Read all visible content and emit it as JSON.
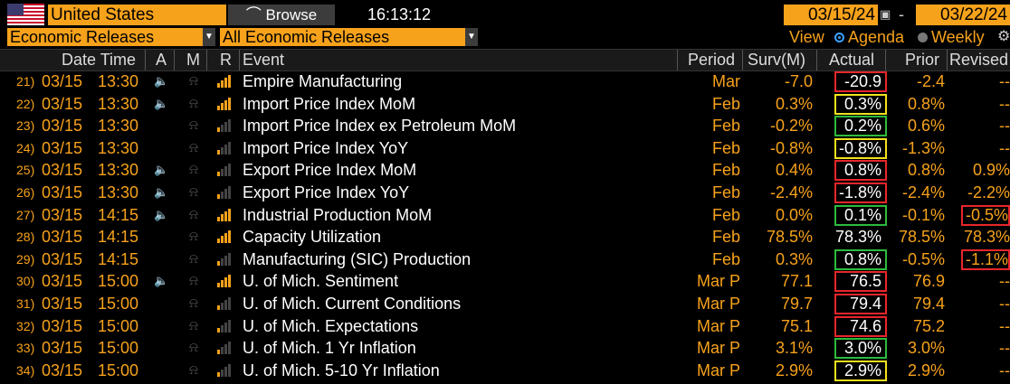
{
  "top": {
    "country": "United States",
    "browse_label": "Browse",
    "time": "16:13:12",
    "start_date": "03/15/24",
    "end_date": "03/22/24",
    "dash": "-"
  },
  "filters": {
    "category": "Economic Releases",
    "subcategory": "All Economic Releases",
    "view_label": "View",
    "agenda_label": "Agenda",
    "weekly_label": "Weekly"
  },
  "columns": {
    "datetime": "Date Time",
    "a": "A",
    "m": "M",
    "r": "R",
    "event": "Event",
    "period": "Period",
    "surv": "Surv(M)",
    "actual": "Actual",
    "prior": "Prior",
    "revised": "Revised"
  },
  "colors": {
    "orange": "#f7a21b",
    "red": "#e8262b",
    "yellow": "#f2e21c",
    "green": "#2dbb3d"
  },
  "rows": [
    {
      "num": "21)",
      "date": "03/15",
      "time": "13:30",
      "speaker": true,
      "bars": 4,
      "event": "Empire Manufacturing",
      "period": "Mar",
      "surv": "-7.0",
      "actual": "-20.9",
      "actual_box": "red",
      "prior": "-2.4",
      "revised": "--",
      "revised_box": ""
    },
    {
      "num": "22)",
      "date": "03/15",
      "time": "13:30",
      "speaker": true,
      "bars": 4,
      "event": "Import Price Index MoM",
      "period": "Feb",
      "surv": "0.3%",
      "actual": "0.3%",
      "actual_box": "yellow",
      "prior": "0.8%",
      "revised": "--",
      "revised_box": ""
    },
    {
      "num": "23)",
      "date": "03/15",
      "time": "13:30",
      "speaker": false,
      "bars": 1,
      "event": "Import Price Index ex Petroleum MoM",
      "period": "Feb",
      "surv": "-0.2%",
      "actual": "0.2%",
      "actual_box": "green",
      "prior": "0.6%",
      "revised": "--",
      "revised_box": ""
    },
    {
      "num": "24)",
      "date": "03/15",
      "time": "13:30",
      "speaker": false,
      "bars": 1,
      "event": "Import Price Index YoY",
      "period": "Feb",
      "surv": "-0.8%",
      "actual": "-0.8%",
      "actual_box": "yellow",
      "prior": "-1.3%",
      "revised": "--",
      "revised_box": ""
    },
    {
      "num": "25)",
      "date": "03/15",
      "time": "13:30",
      "speaker": true,
      "bars": 1,
      "event": "Export Price Index MoM",
      "period": "Feb",
      "surv": "0.4%",
      "actual": "0.8%",
      "actual_box": "red",
      "prior": "0.8%",
      "revised": "0.9%",
      "revised_box": ""
    },
    {
      "num": "26)",
      "date": "03/15",
      "time": "13:30",
      "speaker": true,
      "bars": 1,
      "event": "Export Price Index YoY",
      "period": "Feb",
      "surv": "-2.4%",
      "actual": "-1.8%",
      "actual_box": "red",
      "prior": "-2.4%",
      "revised": "-2.2%",
      "revised_box": ""
    },
    {
      "num": "27)",
      "date": "03/15",
      "time": "14:15",
      "speaker": true,
      "bars": 4,
      "event": "Industrial Production MoM",
      "period": "Feb",
      "surv": "0.0%",
      "actual": "0.1%",
      "actual_box": "green",
      "prior": "-0.1%",
      "revised": "-0.5%",
      "revised_box": "red"
    },
    {
      "num": "28)",
      "date": "03/15",
      "time": "14:15",
      "speaker": false,
      "bars": 4,
      "event": "Capacity Utilization",
      "period": "Feb",
      "surv": "78.5%",
      "actual": "78.3%",
      "actual_box": "",
      "prior": "78.5%",
      "revised": "78.3%",
      "revised_box": ""
    },
    {
      "num": "29)",
      "date": "03/15",
      "time": "14:15",
      "speaker": false,
      "bars": 1,
      "event": "Manufacturing (SIC) Production",
      "period": "Feb",
      "surv": "0.3%",
      "actual": "0.8%",
      "actual_box": "green",
      "prior": "-0.5%",
      "revised": "-1.1%",
      "revised_box": "red"
    },
    {
      "num": "30)",
      "date": "03/15",
      "time": "15:00",
      "speaker": true,
      "bars": 4,
      "event": "U. of Mich. Sentiment",
      "period": "Mar P",
      "surv": "77.1",
      "actual": "76.5",
      "actual_box": "red",
      "prior": "76.9",
      "revised": "--",
      "revised_box": ""
    },
    {
      "num": "31)",
      "date": "03/15",
      "time": "15:00",
      "speaker": false,
      "bars": 1,
      "event": "U. of Mich. Current Conditions",
      "period": "Mar P",
      "surv": "79.7",
      "actual": "79.4",
      "actual_box": "red",
      "prior": "79.4",
      "revised": "--",
      "revised_box": ""
    },
    {
      "num": "32)",
      "date": "03/15",
      "time": "15:00",
      "speaker": false,
      "bars": 1,
      "event": "U. of Mich. Expectations",
      "period": "Mar P",
      "surv": "75.1",
      "actual": "74.6",
      "actual_box": "red",
      "prior": "75.2",
      "revised": "--",
      "revised_box": ""
    },
    {
      "num": "33)",
      "date": "03/15",
      "time": "15:00",
      "speaker": false,
      "bars": 1,
      "event": "U. of Mich. 1 Yr Inflation",
      "period": "Mar P",
      "surv": "3.1%",
      "actual": "3.0%",
      "actual_box": "green",
      "prior": "3.0%",
      "revised": "--",
      "revised_box": ""
    },
    {
      "num": "34)",
      "date": "03/15",
      "time": "15:00",
      "speaker": false,
      "bars": 1,
      "event": "U. of Mich. 5-10 Yr Inflation",
      "period": "Mar P",
      "surv": "2.9%",
      "actual": "2.9%",
      "actual_box": "yellow",
      "prior": "2.9%",
      "revised": "--",
      "revised_box": ""
    }
  ]
}
